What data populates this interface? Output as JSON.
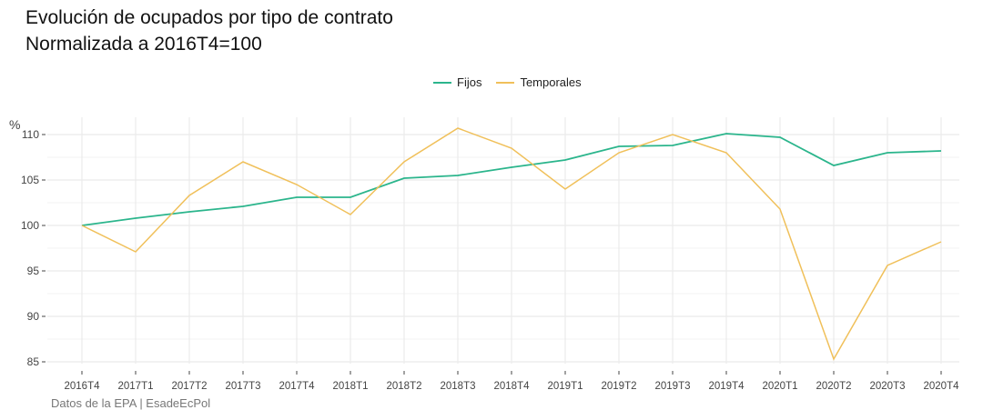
{
  "chart_data": {
    "type": "line",
    "title": "Evolución de ocupados por tipo de contrato",
    "subtitle": "Normalizada a 2016T4=100",
    "ylabel": "%",
    "xlabel": "",
    "caption": "Datos de la EPA | EsadeEcPol",
    "ylim": [
      84.8,
      111.9
    ],
    "yticks": [
      85,
      90,
      95,
      100,
      105,
      110
    ],
    "grid": true,
    "legend_position": "top",
    "categories": [
      "2016T4",
      "2017T1",
      "2017T2",
      "2017T3",
      "2017T4",
      "2018T1",
      "2018T2",
      "2018T3",
      "2018T4",
      "2019T1",
      "2019T2",
      "2019T3",
      "2019T4",
      "2020T1",
      "2020T2",
      "2020T3",
      "2020T4"
    ],
    "series": [
      {
        "name": "Fijos",
        "color": "#2bb58c",
        "values": [
          100,
          100.8,
          101.5,
          102.1,
          103.1,
          103.1,
          105.2,
          105.5,
          106.4,
          107.2,
          108.7,
          108.8,
          110.1,
          109.7,
          106.6,
          108.0,
          108.2
        ]
      },
      {
        "name": "Temporales",
        "color": "#f0c05a",
        "values": [
          100,
          97.1,
          103.3,
          107.0,
          104.5,
          101.2,
          107.0,
          110.7,
          108.5,
          104.0,
          108.0,
          110.0,
          108.0,
          101.8,
          85.3,
          95.6,
          98.2
        ]
      }
    ]
  }
}
